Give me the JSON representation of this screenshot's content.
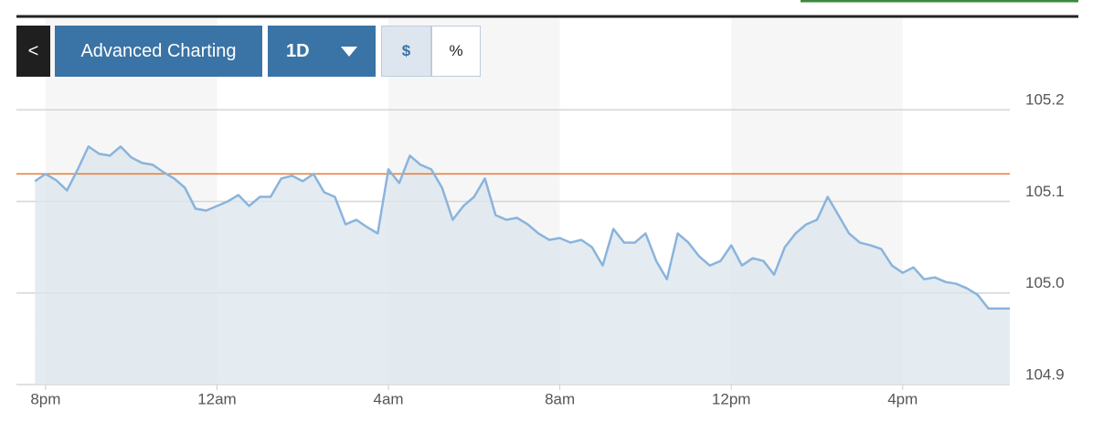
{
  "chart_data": {
    "type": "line",
    "color": "#8ab4dc",
    "area_color": "#dbe6ee",
    "reference_line": {
      "value": 105.13,
      "color": "#e07b39"
    },
    "controls": {
      "back": "<",
      "advanced": "Advanced Charting",
      "period": "1D",
      "dollar": "$",
      "percent": "%"
    },
    "x": [
      -0.25,
      0,
      0.25,
      0.5,
      0.75,
      1,
      1.25,
      1.5,
      1.75,
      2,
      2.25,
      2.5,
      2.75,
      3,
      3.25,
      3.5,
      3.75,
      4,
      4.25,
      4.5,
      4.75,
      5,
      5.25,
      5.5,
      5.75,
      6,
      6.25,
      6.5,
      6.75,
      7,
      7.25,
      7.5,
      7.75,
      8,
      8.25,
      8.5,
      8.75,
      9,
      9.25,
      9.5,
      9.75,
      10,
      10.25,
      10.5,
      10.75,
      11,
      11.25,
      11.5,
      11.75,
      12,
      12.25,
      12.5,
      12.75,
      13,
      13.25,
      13.5,
      13.75,
      14,
      14.25,
      14.5,
      14.75,
      15,
      15.25,
      15.5,
      15.75,
      16,
      16.25,
      16.5,
      16.75,
      17,
      17.25,
      17.5,
      17.75,
      18,
      18.25,
      18.5,
      18.75,
      19,
      19.25,
      19.5,
      19.75,
      20,
      20.25,
      20.5,
      20.75,
      21,
      21.25,
      21.5,
      21.75,
      22,
      22.25,
      22.5
    ],
    "values": [
      105.122,
      105.13,
      105.123,
      105.112,
      105.135,
      105.16,
      105.152,
      105.15,
      105.16,
      105.148,
      105.142,
      105.14,
      105.132,
      105.125,
      105.115,
      105.092,
      105.09,
      105.095,
      105.1,
      105.107,
      105.095,
      105.105,
      105.105,
      105.125,
      105.128,
      105.122,
      105.13,
      105.11,
      105.105,
      105.075,
      105.08,
      105.072,
      105.065,
      105.135,
      105.12,
      105.15,
      105.14,
      105.135,
      105.115,
      105.08,
      105.095,
      105.105,
      105.125,
      105.085,
      105.08,
      105.082,
      105.075,
      105.065,
      105.058,
      105.06,
      105.055,
      105.058,
      105.05,
      105.03,
      105.07,
      105.055,
      105.055,
      105.065,
      105.035,
      105.015,
      105.065,
      105.055,
      105.04,
      105.03,
      105.035,
      105.052,
      105.03,
      105.038,
      105.035,
      105.02,
      105.05,
      105.065,
      105.075,
      105.08,
      105.105,
      105.085,
      105.065,
      105.055,
      105.052,
      105.048,
      105.03,
      105.022,
      105.028,
      105.015,
      105.017,
      105.012,
      105.01,
      105.005,
      104.998,
      104.983,
      104.983,
      104.983
    ],
    "xlim": [
      -0.68,
      22.5
    ],
    "xticks": [
      {
        "value": 0,
        "label": "8pm"
      },
      {
        "value": 4,
        "label": "12am"
      },
      {
        "value": 8,
        "label": "4am"
      },
      {
        "value": 12,
        "label": "8am"
      },
      {
        "value": 16,
        "label": "12pm"
      },
      {
        "value": 20,
        "label": "4pm"
      }
    ],
    "ylim": [
      104.9,
      105.3
    ],
    "yticks": [
      104.9,
      {
        "value": 105,
        "label": "105.0"
      },
      105.1,
      105.2
    ],
    "grid": true
  }
}
